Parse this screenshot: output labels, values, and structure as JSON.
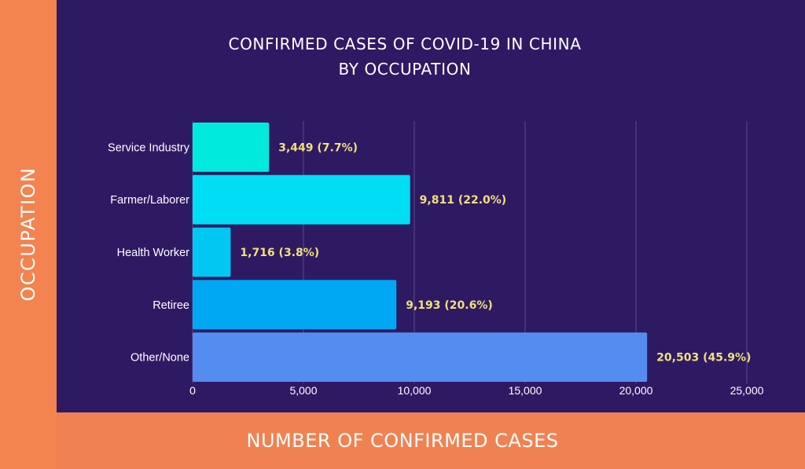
{
  "chart_data": {
    "type": "bar",
    "orientation": "horizontal",
    "title": [
      "CONFIRMED CASES OF COVID-19 IN CHINA",
      "BY OCCUPATION"
    ],
    "ylabel": "OCCUPATION",
    "xlabel": "NUMBER OF CONFIRMED CASES",
    "categories": [
      "Service Industry",
      "Farmer/Laborer",
      "Health Worker",
      "Retiree",
      "Other/None"
    ],
    "values": [
      3449,
      9811,
      1716,
      9193,
      20503
    ],
    "data_labels": [
      "3,449 (7.7%)",
      "9,811 (22.0%)",
      "1,716 (3.8%)",
      "9,193 (20.6%)",
      "20,503 (45.9%)"
    ],
    "bar_colors": [
      "#00eade",
      "#00def5",
      "#00c8f3",
      "#00a8f3",
      "#558cf0"
    ],
    "xlim": [
      0,
      25000
    ],
    "x_ticks": [
      0,
      5000,
      10000,
      15000,
      20000,
      25000
    ],
    "x_tick_labels": [
      "0",
      "5,000",
      "10,000",
      "15,000",
      "20,000",
      "25,000"
    ],
    "grid": true
  }
}
